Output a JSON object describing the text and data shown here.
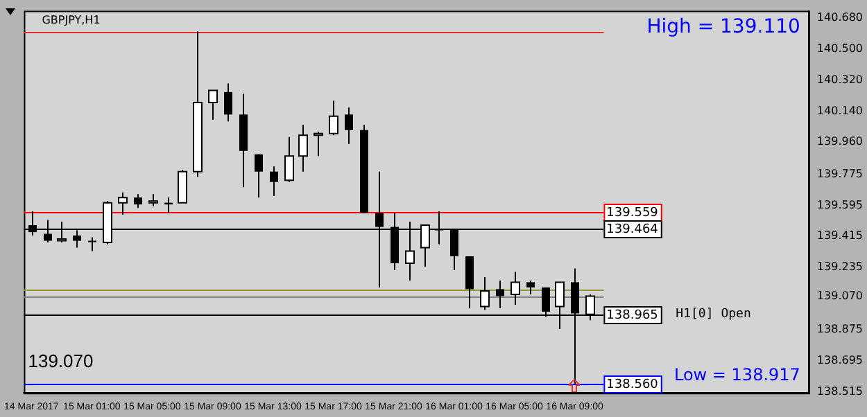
{
  "chart_data": {
    "type": "candlestick",
    "title": "GBPJPY,H1",
    "categories": [
      "14 Mar 2017",
      null,
      null,
      null,
      "15 Mar 01:00",
      null,
      null,
      null,
      "15 Mar 05:00",
      null,
      null,
      null,
      "15 Mar 09:00",
      null,
      null,
      null,
      "15 Mar 13:00",
      null,
      null,
      null,
      "15 Mar 17:00",
      null,
      null,
      null,
      "15 Mar 21:00",
      null,
      null,
      null,
      "16 Mar 01:00",
      null,
      null,
      null,
      "16 Mar 05:00",
      null,
      null,
      null,
      "16 Mar 09:00",
      null,
      null,
      null,
      null,
      null,
      null,
      null,
      null,
      null,
      null,
      null,
      null,
      null,
      null,
      null
    ],
    "ohlc": [
      [
        139.48,
        139.56,
        139.42,
        139.44
      ],
      [
        139.43,
        139.51,
        139.38,
        139.39
      ],
      [
        139.39,
        139.5,
        139.38,
        139.4
      ],
      [
        139.42,
        139.45,
        139.35,
        139.39
      ],
      [
        139.39,
        139.41,
        139.33,
        139.39
      ],
      [
        139.38,
        139.62,
        139.37,
        139.61
      ],
      [
        139.61,
        139.67,
        139.54,
        139.64
      ],
      [
        139.64,
        139.66,
        139.58,
        139.6
      ],
      [
        139.61,
        139.66,
        139.59,
        139.62
      ],
      [
        139.61,
        139.64,
        139.55,
        139.6
      ],
      [
        139.61,
        139.8,
        139.61,
        139.79
      ],
      [
        139.79,
        140.6,
        139.76,
        140.19
      ],
      [
        140.19,
        140.26,
        140.09,
        140.26
      ],
      [
        140.25,
        140.3,
        140.08,
        140.12
      ],
      [
        140.12,
        140.24,
        139.7,
        139.91
      ],
      [
        139.89,
        139.89,
        139.64,
        139.79
      ],
      [
        139.79,
        139.82,
        139.65,
        139.73
      ],
      [
        139.74,
        139.99,
        139.73,
        139.88
      ],
      [
        139.88,
        140.06,
        139.79,
        140.0
      ],
      [
        140.0,
        140.02,
        139.88,
        140.01
      ],
      [
        140.01,
        140.2,
        140.0,
        140.11
      ],
      [
        140.12,
        140.16,
        139.95,
        140.03
      ],
      [
        140.03,
        140.06,
        139.55,
        139.55
      ],
      [
        139.55,
        139.79,
        139.12,
        139.47
      ],
      [
        139.47,
        139.55,
        139.22,
        139.26
      ],
      [
        139.26,
        139.5,
        139.16,
        139.33
      ],
      [
        139.35,
        139.48,
        139.24,
        139.48
      ],
      [
        139.46,
        139.56,
        139.37,
        139.45
      ],
      [
        139.46,
        139.46,
        139.22,
        139.3
      ],
      [
        139.3,
        139.3,
        139.0,
        139.11
      ],
      [
        139.01,
        139.18,
        138.99,
        139.1
      ],
      [
        139.11,
        139.16,
        139.0,
        139.07
      ],
      [
        139.08,
        139.21,
        139.02,
        139.15
      ],
      [
        139.15,
        139.16,
        139.08,
        139.12
      ],
      [
        139.12,
        139.12,
        138.95,
        138.98
      ],
      [
        139.01,
        139.15,
        138.88,
        139.15
      ],
      [
        139.15,
        139.23,
        138.56,
        138.97
      ],
      [
        138.965,
        139.08,
        138.93,
        139.07
      ],
      null,
      null,
      null,
      null,
      null,
      null,
      null,
      null,
      null,
      null,
      null,
      null,
      null,
      null
    ],
    "colors": [
      "#000000",
      "#000000",
      "#ffffff",
      "#000000",
      "#000000",
      "#ffffff",
      "#ffffff",
      "#000000",
      "#ffffff",
      "#000000",
      "#ffffff",
      "#ffffff",
      "#ffffff",
      "#000000",
      "#000000",
      "#000000",
      "#000000",
      "#ffffff",
      "#ffffff",
      "#ffffff",
      "#ffffff",
      "#000000",
      "#000000",
      "#000000",
      "#000000",
      "#ffffff",
      "#ffffff",
      "#000000",
      "#000000",
      "#000000",
      "#ffffff",
      "#000000",
      "#ffffff",
      "#000000",
      "#000000",
      "#ffffff",
      "#000000",
      "#ffffff",
      null,
      null,
      null,
      null,
      null,
      null,
      null,
      null,
      null,
      null,
      null,
      null,
      null,
      null
    ],
    "ylim": [
      138.51,
      140.72
    ],
    "yticks": [
      {
        "value": 140.68,
        "label": "140.680"
      },
      {
        "value": 140.5,
        "label": "140.500"
      },
      {
        "value": 140.32,
        "label": "140.320"
      },
      {
        "value": 140.14,
        "label": "140.140"
      },
      {
        "value": 139.96,
        "label": "139.960"
      },
      139.775,
      139.595,
      139.415,
      139.235,
      {
        "value": 139.07,
        "label": "139.070"
      },
      138.875,
      138.695,
      138.515
    ],
    "ref_lines": [
      {
        "axis": "y",
        "value": 140.6,
        "color": "#e03030"
      },
      {
        "axis": "y",
        "value": 139.11,
        "color": "#9a9a30"
      },
      {
        "axis": "y",
        "value": 139.07,
        "color": "#808080"
      },
      {
        "axis": "y",
        "value": 139.559,
        "label": "139.559",
        "color": "#ff0000"
      },
      {
        "axis": "y",
        "value": 139.464,
        "label": "139.464",
        "color": "#000000"
      },
      {
        "axis": "y",
        "value": 138.965,
        "label": "138.965",
        "color": "#000000"
      },
      {
        "axis": "y",
        "value": 138.56,
        "label": "138.560",
        "color": "#0000ff"
      }
    ],
    "annotations": [
      "High = 139.110",
      "Low = 138.917",
      "139.070",
      "H1[0] Open"
    ],
    "grid": false,
    "legend": false
  }
}
